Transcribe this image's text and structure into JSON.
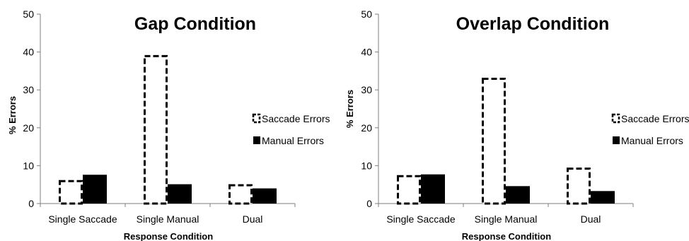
{
  "chart_data": [
    {
      "type": "bar",
      "title": "Gap Condition",
      "xlabel": "Response Condition",
      "ylabel": "% Errors",
      "ylim": [
        0,
        50
      ],
      "yticks": [
        0,
        10,
        20,
        30,
        40,
        50
      ],
      "categories": [
        "Single Saccade",
        "Single Manual",
        "Dual"
      ],
      "series": [
        {
          "name": "Saccade Errors",
          "values": [
            6.2,
            39.2,
            5.1
          ],
          "style": "dashed-outline"
        },
        {
          "name": "Manual Errors",
          "values": [
            7.6,
            5.1,
            4.0
          ],
          "style": "solid"
        }
      ],
      "legend_position": "right",
      "grid": false
    },
    {
      "type": "bar",
      "title": "Overlap Condition",
      "xlabel": "Response Condition",
      "ylabel": "% Errors",
      "ylim": [
        0,
        50
      ],
      "yticks": [
        0,
        10,
        20,
        30,
        40,
        50
      ],
      "categories": [
        "Single Saccade",
        "Single Manual",
        "Dual"
      ],
      "series": [
        {
          "name": "Saccade Errors",
          "values": [
            7.5,
            33.2,
            9.5
          ],
          "style": "dashed-outline"
        },
        {
          "name": "Manual Errors",
          "values": [
            7.7,
            4.6,
            3.3
          ],
          "style": "solid"
        }
      ],
      "legend_position": "right",
      "grid": false
    }
  ],
  "colors": {
    "bar_fill": "#000000",
    "bar_outline": "#000000",
    "axis": "#7f7f7f"
  }
}
